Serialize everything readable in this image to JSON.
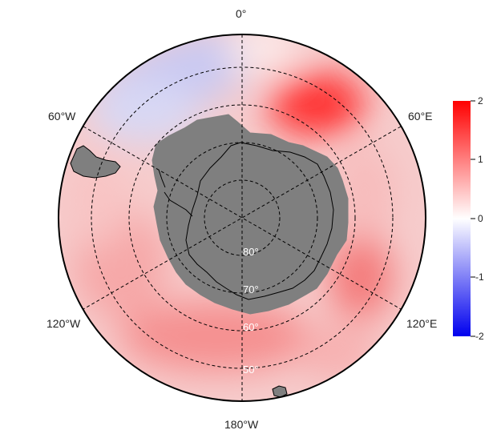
{
  "map": {
    "projection": "south-polar-stereographic",
    "longitude_labels": {
      "top": "0°",
      "upper_right": "60°E",
      "lower_right": "120°E",
      "bottom": "180°W",
      "lower_left": "120°W",
      "upper_left": "60°W"
    },
    "latitude_labels": [
      "80°",
      "70°",
      "60°",
      "50°"
    ],
    "land_color": "#7f7f7f",
    "graticule_style": "dashed"
  },
  "colorbar": {
    "min": -2,
    "max": 2,
    "ticks": [
      "2",
      "1",
      "0",
      "-1",
      "-2"
    ],
    "colors": {
      "low": "#0000ee",
      "mid": "#ffffff",
      "high": "#ff0000"
    }
  }
}
